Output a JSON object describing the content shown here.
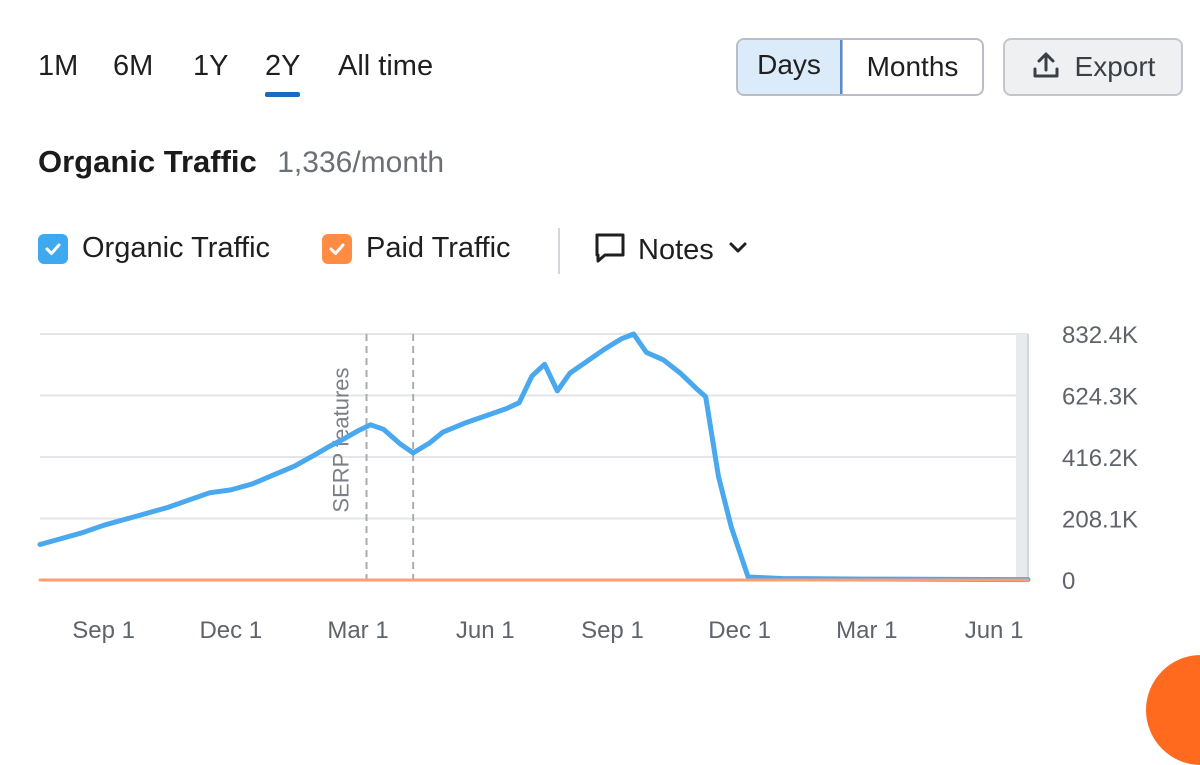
{
  "period_tabs": [
    {
      "label": "1M",
      "active": false
    },
    {
      "label": "6M",
      "active": false
    },
    {
      "label": "1Y",
      "active": false
    },
    {
      "label": "2Y",
      "active": true
    },
    {
      "label": "All time",
      "active": false
    }
  ],
  "granularity": {
    "days": "Days",
    "months": "Months",
    "selected": "Days"
  },
  "export": {
    "label": "Export",
    "icon": "upload-icon"
  },
  "title": {
    "label": "Organic Traffic",
    "value": "1,336/month"
  },
  "legend": {
    "organic": {
      "label": "Organic Traffic",
      "checked": true,
      "color": "#3fa9f0"
    },
    "paid": {
      "label": "Paid Traffic",
      "checked": true,
      "color": "#ff8c42"
    },
    "notes": {
      "label": "Notes",
      "icon": "comment-icon",
      "dropdown_icon": "chevron-down-icon"
    }
  },
  "chart_data": {
    "type": "line",
    "x_tick_labels": [
      "Sep 1",
      "Dec 1",
      "Mar 1",
      "Jun 1",
      "Sep 1",
      "Dec 1",
      "Mar 1",
      "Jun 1"
    ],
    "y_tick_labels": [
      "0",
      "208.1K",
      "416.2K",
      "624.3K",
      "832.4K"
    ],
    "y_ticks": [
      0,
      208100,
      416200,
      624300,
      832400
    ],
    "ylim": [
      0,
      832400
    ],
    "x_start_month": 6.5,
    "x_end_month": 29.8,
    "x_tick_months": [
      8,
      11,
      14,
      17,
      20,
      23,
      26,
      29
    ],
    "annotation": {
      "label": "SERP features",
      "month_start": 14.2,
      "month_end": 15.3
    },
    "series": [
      {
        "name": "Organic Traffic",
        "color": "#4aa8ee",
        "points": [
          [
            6.5,
            120000
          ],
          [
            7.0,
            140000
          ],
          [
            7.5,
            160000
          ],
          [
            8.0,
            185000
          ],
          [
            8.5,
            205000
          ],
          [
            9.0,
            225000
          ],
          [
            9.5,
            245000
          ],
          [
            10.0,
            270000
          ],
          [
            10.5,
            295000
          ],
          [
            11.0,
            305000
          ],
          [
            11.5,
            325000
          ],
          [
            12.0,
            355000
          ],
          [
            12.5,
            385000
          ],
          [
            13.0,
            425000
          ],
          [
            13.3,
            450000
          ],
          [
            13.7,
            480000
          ],
          [
            14.0,
            505000
          ],
          [
            14.3,
            525000
          ],
          [
            14.6,
            510000
          ],
          [
            15.0,
            460000
          ],
          [
            15.3,
            430000
          ],
          [
            15.7,
            465000
          ],
          [
            16.0,
            500000
          ],
          [
            16.5,
            530000
          ],
          [
            17.0,
            555000
          ],
          [
            17.5,
            580000
          ],
          [
            17.8,
            600000
          ],
          [
            18.1,
            690000
          ],
          [
            18.4,
            730000
          ],
          [
            18.7,
            640000
          ],
          [
            19.0,
            700000
          ],
          [
            19.4,
            740000
          ],
          [
            19.8,
            780000
          ],
          [
            20.2,
            815000
          ],
          [
            20.5,
            832400
          ],
          [
            20.8,
            770000
          ],
          [
            21.2,
            745000
          ],
          [
            21.6,
            700000
          ],
          [
            22.0,
            645000
          ],
          [
            22.2,
            620000
          ],
          [
            22.5,
            350000
          ],
          [
            22.8,
            180000
          ],
          [
            23.2,
            10000
          ],
          [
            24.0,
            5000
          ],
          [
            26.0,
            3000
          ],
          [
            29.8,
            1336
          ]
        ]
      },
      {
        "name": "Paid Traffic",
        "color": "#ff9d6e",
        "points": [
          [
            6.5,
            0
          ],
          [
            29.8,
            0
          ]
        ]
      }
    ]
  }
}
